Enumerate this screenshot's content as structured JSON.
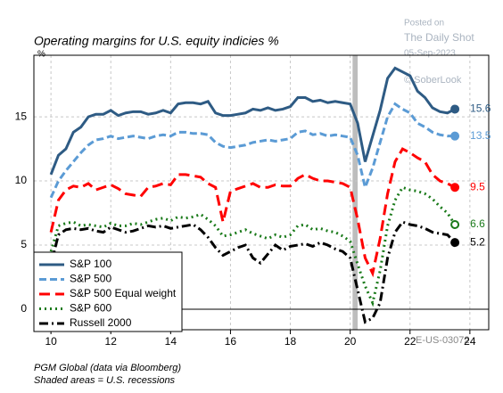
{
  "chart_data": {
    "type": "line",
    "title": "Operating margins for U.S. equity indicies %",
    "y_unit": "%",
    "watermark": [
      "Posted on",
      "The Daily Shot",
      "05-Sep-2023",
      "© SoberLook"
    ],
    "code": "E-US-03072",
    "notes": [
      "PGM Global (data via Bloomberg)",
      "Shaded areas = U.S. recessions"
    ],
    "xlim": [
      9.43,
      24.63
    ],
    "ylim": [
      -1.6,
      19.8
    ],
    "xticks": [
      10,
      12,
      14,
      16,
      18,
      20,
      22,
      24
    ],
    "yticks": [
      0,
      5,
      10,
      15
    ],
    "grid": true,
    "legend": "lower left",
    "recessions": [
      [
        20.08,
        20.25
      ]
    ],
    "x": [
      10,
      10.25,
      10.5,
      10.75,
      11,
      11.25,
      11.5,
      11.75,
      12,
      12.25,
      12.5,
      12.75,
      13,
      13.25,
      13.5,
      13.75,
      14,
      14.25,
      14.5,
      14.75,
      15,
      15.25,
      15.5,
      15.75,
      16,
      16.25,
      16.5,
      16.75,
      17,
      17.25,
      17.5,
      17.75,
      18,
      18.25,
      18.5,
      18.75,
      19,
      19.25,
      19.5,
      19.75,
      20,
      20.25,
      20.5,
      20.75,
      21,
      21.25,
      21.5,
      21.75,
      22,
      22.25,
      22.5,
      22.75,
      23,
      23.25,
      23.5
    ],
    "series": [
      {
        "name": "S&P 100",
        "color": "#2e5b84",
        "style": "solid",
        "marker": "filled",
        "values": [
          10.5,
          12,
          12.5,
          13.8,
          14.2,
          15,
          15.2,
          15.2,
          15.5,
          15.1,
          15.3,
          15.4,
          15.4,
          15.2,
          15.3,
          15.5,
          15.3,
          16,
          16.1,
          16.1,
          16,
          16.2,
          15.3,
          15.1,
          15.1,
          15.2,
          15.3,
          15.6,
          15.5,
          15.7,
          15.5,
          15.6,
          15.8,
          16.5,
          16.5,
          16.2,
          16.3,
          16.1,
          16.2,
          16.1,
          16,
          14.5,
          11.5,
          13.5,
          15.5,
          18,
          18.8,
          18.5,
          18.2,
          17,
          16.5,
          15.7,
          15.4,
          15.3,
          15.6
        ]
      },
      {
        "name": "S&P 500",
        "color": "#5b9bd5",
        "style": "dashed",
        "marker": "filled",
        "values": [
          8.7,
          10,
          10.8,
          11.5,
          12.2,
          12.8,
          13.2,
          13.3,
          13.5,
          13.3,
          13.4,
          13.5,
          13.4,
          13.3,
          13.5,
          13.6,
          13.5,
          13.8,
          13.8,
          13.7,
          13.7,
          13.6,
          13,
          12.7,
          12.6,
          12.7,
          12.8,
          13,
          13.1,
          13.2,
          13.1,
          13.2,
          13.3,
          13.8,
          13.9,
          13.6,
          13.7,
          13.5,
          13.6,
          13.5,
          13.4,
          12,
          9.5,
          11,
          13,
          15,
          16,
          15.6,
          15.3,
          14.5,
          14.2,
          13.8,
          13.6,
          13.5,
          13.5
        ]
      },
      {
        "name": "S&P 500 Equal weight",
        "color": "#ff0000",
        "style": "longdash",
        "marker": "filled",
        "values": [
          6,
          8.5,
          9.3,
          9.6,
          9.5,
          9.8,
          9.3,
          9.5,
          9.7,
          9.4,
          9,
          8.9,
          8.8,
          9.5,
          9.6,
          9.8,
          9.7,
          10.5,
          10.5,
          10.4,
          10.3,
          9.8,
          9.5,
          6.8,
          9.2,
          9.4,
          9.6,
          9.8,
          9.5,
          9.5,
          9.7,
          9.6,
          9.6,
          10.2,
          10.5,
          10.2,
          10,
          10,
          9.9,
          9.8,
          9.5,
          7,
          4,
          2.8,
          5.5,
          9,
          11.5,
          12.5,
          12.2,
          11.8,
          11.5,
          10.5,
          10,
          9.8,
          9.5
        ]
      },
      {
        "name": "S&P 600",
        "color": "#1a7a1a",
        "style": "dotted",
        "marker": "hollow",
        "values": [
          4.5,
          6.5,
          6.7,
          6.8,
          6.5,
          6.6,
          6.5,
          6.4,
          6.7,
          6.5,
          6.5,
          6.7,
          6.6,
          6.8,
          7,
          7.1,
          6.9,
          7.2,
          7.1,
          7.2,
          7.4,
          7,
          6.5,
          5.7,
          5.8,
          6,
          6.2,
          5.9,
          5.7,
          5.5,
          5.8,
          5.6,
          5.8,
          6.5,
          6.6,
          6.2,
          6.3,
          6.1,
          6,
          5.7,
          5.3,
          3.5,
          1.8,
          0.5,
          3,
          6.5,
          8.5,
          9.5,
          9.3,
          9.2,
          9,
          8.6,
          8,
          7.5,
          6.6
        ]
      },
      {
        "name": "Russell 2000",
        "color": "#000000",
        "style": "dashdot",
        "marker": "filled",
        "values": [
          3.5,
          5.8,
          6.2,
          6.3,
          6.2,
          6.3,
          6.1,
          6,
          6.4,
          6.2,
          6,
          6.1,
          6.3,
          6.5,
          6.4,
          6.5,
          6.3,
          6.4,
          6.5,
          6.6,
          6.2,
          5.6,
          4.8,
          4.2,
          4.5,
          4.8,
          5,
          4,
          3.6,
          4.3,
          5,
          4.6,
          4.9,
          5,
          5.1,
          4.9,
          5.2,
          5,
          4.7,
          4.5,
          4,
          1.5,
          -1,
          -0.7,
          0.5,
          4,
          6,
          6.8,
          6.6,
          6.5,
          6.3,
          6,
          5.9,
          5.8,
          5.2
        ]
      }
    ]
  }
}
